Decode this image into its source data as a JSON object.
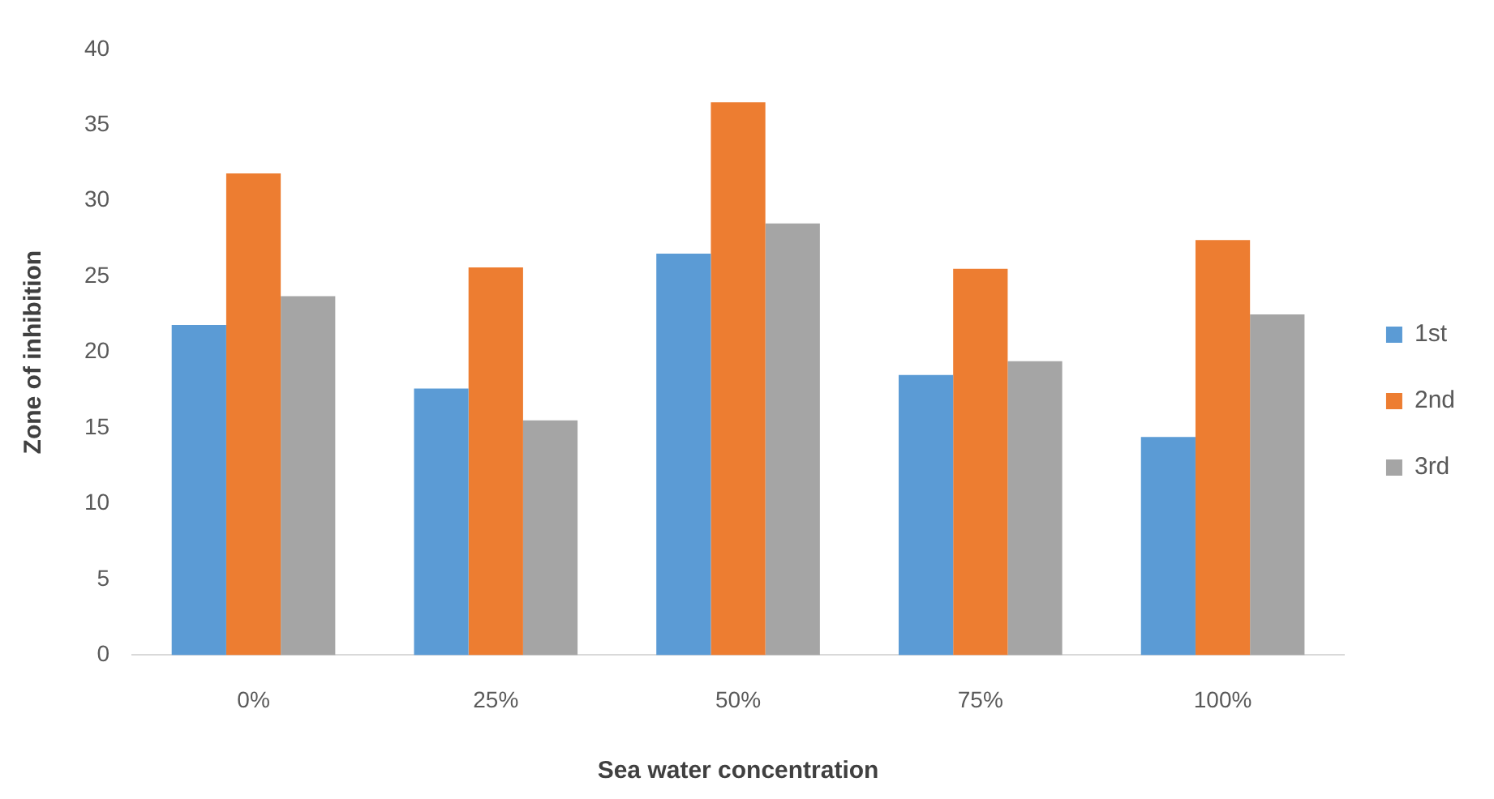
{
  "chart_data": {
    "type": "bar",
    "xlabel": "Sea water concentration",
    "ylabel": "Zone of inhibition",
    "categories": [
      "0%",
      "25%",
      "50%",
      "75%",
      "100%"
    ],
    "series": [
      {
        "name": "1st",
        "color": "#5b9bd5",
        "values": [
          21.8,
          17.6,
          26.5,
          18.5,
          14.4
        ]
      },
      {
        "name": "2nd",
        "color": "#ed7d31",
        "values": [
          31.8,
          25.6,
          36.5,
          25.5,
          27.4
        ]
      },
      {
        "name": "3rd",
        "color": "#a5a5a5",
        "values": [
          23.7,
          15.5,
          28.5,
          19.4,
          22.5
        ]
      }
    ],
    "ylim": [
      0,
      40
    ],
    "yticks": [
      0,
      5,
      10,
      15,
      20,
      25,
      30,
      35,
      40
    ],
    "legend": "right"
  }
}
